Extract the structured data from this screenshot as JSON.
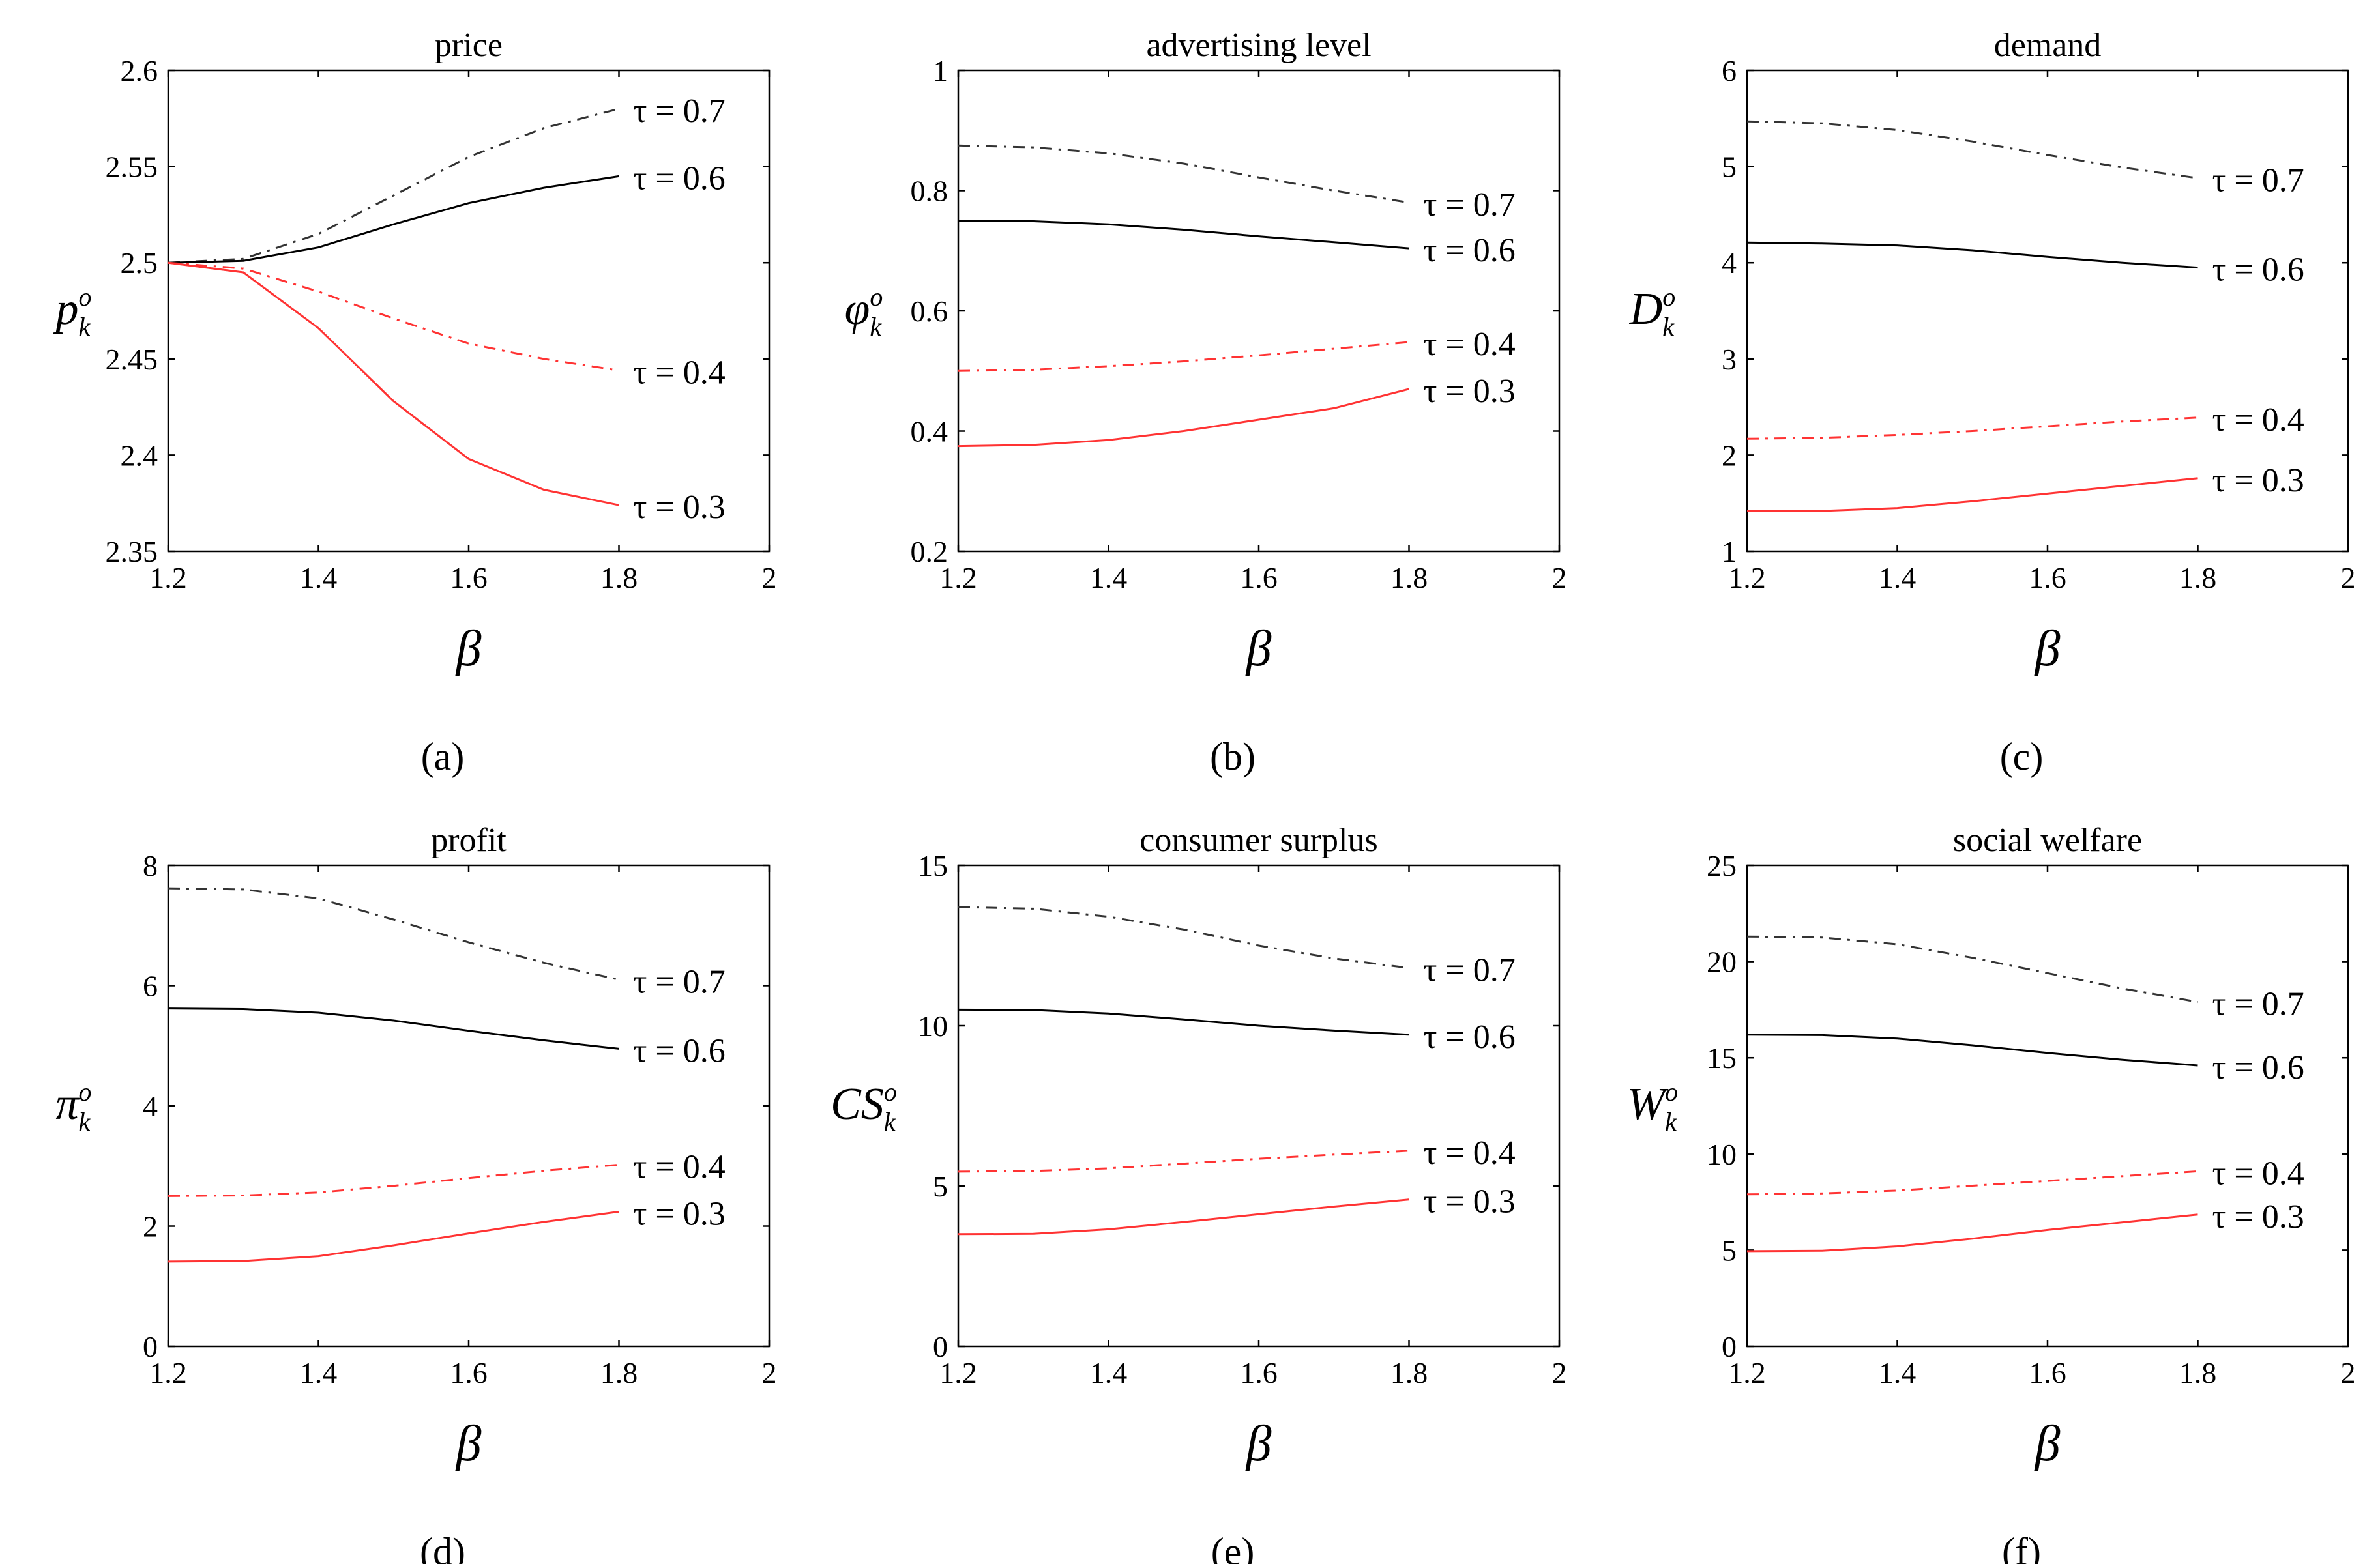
{
  "chart_data": [
    {
      "type": "line",
      "title": "price",
      "caption": "(a)",
      "xlabel": "β",
      "ylabel": {
        "base": "p",
        "sub": "k",
        "sup": "o"
      },
      "x": [
        1.2,
        1.3,
        1.4,
        1.5,
        1.6,
        1.7,
        1.8
      ],
      "xlim": [
        1.2,
        2
      ],
      "xticks": [
        "1.2",
        "1.4",
        "1.6",
        "1.8",
        "2"
      ],
      "ylim": [
        2.35,
        2.6
      ],
      "yticks": [
        "2.35",
        "2.4",
        "2.45",
        "2.5",
        "2.55",
        "2.6"
      ],
      "series": [
        {
          "name": "τ = 0.7",
          "color": "#333333",
          "dash": "dashdot",
          "values": [
            2.5,
            2.502,
            2.515,
            2.535,
            2.555,
            2.57,
            2.58
          ]
        },
        {
          "name": "τ = 0.6",
          "color": "#000000",
          "dash": "solid",
          "values": [
            2.5,
            2.501,
            2.508,
            2.52,
            2.531,
            2.539,
            2.545
          ]
        },
        {
          "name": "τ = 0.4",
          "color": "#ff3333",
          "dash": "dashdot",
          "values": [
            2.5,
            2.497,
            2.485,
            2.471,
            2.458,
            2.45,
            2.444
          ]
        },
        {
          "name": "τ = 0.3",
          "color": "#ff3333",
          "dash": "solid",
          "values": [
            2.5,
            2.495,
            2.466,
            2.428,
            2.398,
            2.382,
            2.374
          ]
        }
      ]
    },
    {
      "type": "line",
      "title": "advertising level",
      "caption": "(b)",
      "xlabel": "β",
      "ylabel": {
        "base": "φ",
        "sub": "k",
        "sup": "o"
      },
      "x": [
        1.2,
        1.3,
        1.4,
        1.5,
        1.6,
        1.7,
        1.8
      ],
      "xlim": [
        1.2,
        2
      ],
      "xticks": [
        "1.2",
        "1.4",
        "1.6",
        "1.8",
        "2"
      ],
      "ylim": [
        0.2,
        1
      ],
      "yticks": [
        "0.2",
        "0.4",
        "0.6",
        "0.8",
        "1"
      ],
      "series": [
        {
          "name": "τ = 0.7",
          "color": "#333333",
          "dash": "dashdot",
          "values": [
            0.875,
            0.872,
            0.862,
            0.845,
            0.822,
            0.8,
            0.78
          ]
        },
        {
          "name": "τ = 0.6",
          "color": "#000000",
          "dash": "solid",
          "values": [
            0.75,
            0.749,
            0.744,
            0.735,
            0.724,
            0.714,
            0.704
          ]
        },
        {
          "name": "τ = 0.4",
          "color": "#ff3333",
          "dash": "dashdot",
          "values": [
            0.5,
            0.502,
            0.508,
            0.516,
            0.526,
            0.537,
            0.548
          ]
        },
        {
          "name": "τ = 0.3",
          "color": "#ff3333",
          "dash": "solid",
          "values": [
            0.375,
            0.377,
            0.385,
            0.4,
            0.419,
            0.438,
            0.47
          ]
        }
      ]
    },
    {
      "type": "line",
      "title": "demand",
      "caption": "(c)",
      "xlabel": "β",
      "ylabel": {
        "base": "D",
        "sub": "k",
        "sup": "o"
      },
      "x": [
        1.2,
        1.3,
        1.4,
        1.5,
        1.6,
        1.7,
        1.8
      ],
      "xlim": [
        1.2,
        2
      ],
      "xticks": [
        "1.2",
        "1.4",
        "1.6",
        "1.8",
        "2"
      ],
      "ylim": [
        1,
        6
      ],
      "yticks": [
        "1",
        "2",
        "3",
        "4",
        "5",
        "6"
      ],
      "series": [
        {
          "name": "τ = 0.7",
          "color": "#333333",
          "dash": "dashdot",
          "values": [
            5.47,
            5.45,
            5.38,
            5.26,
            5.12,
            4.99,
            4.88
          ]
        },
        {
          "name": "τ = 0.6",
          "color": "#000000",
          "dash": "solid",
          "values": [
            4.21,
            4.2,
            4.18,
            4.13,
            4.06,
            4.0,
            3.95
          ]
        },
        {
          "name": "τ = 0.4",
          "color": "#ff3333",
          "dash": "dashdot",
          "values": [
            2.17,
            2.18,
            2.21,
            2.25,
            2.3,
            2.35,
            2.39
          ]
        },
        {
          "name": "τ = 0.3",
          "color": "#ff3333",
          "dash": "solid",
          "values": [
            1.42,
            1.42,
            1.45,
            1.52,
            1.6,
            1.68,
            1.76
          ]
        }
      ]
    },
    {
      "type": "line",
      "title": "profit",
      "caption": "(d)",
      "xlabel": "β",
      "ylabel": {
        "base": "π",
        "sub": "k",
        "sup": "o"
      },
      "x": [
        1.2,
        1.3,
        1.4,
        1.5,
        1.6,
        1.7,
        1.8
      ],
      "xlim": [
        1.2,
        2
      ],
      "xticks": [
        "1.2",
        "1.4",
        "1.6",
        "1.8",
        "2"
      ],
      "ylim": [
        0,
        8
      ],
      "yticks": [
        "0",
        "2",
        "4",
        "6",
        "8"
      ],
      "series": [
        {
          "name": "τ = 0.7",
          "color": "#333333",
          "dash": "dashdot",
          "values": [
            7.62,
            7.6,
            7.45,
            7.1,
            6.72,
            6.38,
            6.1
          ]
        },
        {
          "name": "τ = 0.6",
          "color": "#000000",
          "dash": "solid",
          "values": [
            5.62,
            5.61,
            5.55,
            5.42,
            5.25,
            5.09,
            4.95
          ]
        },
        {
          "name": "τ = 0.4",
          "color": "#ff3333",
          "dash": "dashdot",
          "values": [
            2.5,
            2.51,
            2.56,
            2.67,
            2.8,
            2.92,
            3.02
          ]
        },
        {
          "name": "τ = 0.3",
          "color": "#ff3333",
          "dash": "solid",
          "values": [
            1.41,
            1.42,
            1.5,
            1.68,
            1.88,
            2.07,
            2.24
          ]
        }
      ]
    },
    {
      "type": "line",
      "title": "consumer surplus",
      "caption": "(e)",
      "xlabel": "β",
      "ylabel": {
        "base": "CS",
        "sub": "k",
        "sup": "o"
      },
      "x": [
        1.2,
        1.3,
        1.4,
        1.5,
        1.6,
        1.7,
        1.8
      ],
      "xlim": [
        1.2,
        2
      ],
      "xticks": [
        "1.2",
        "1.4",
        "1.6",
        "1.8",
        "2"
      ],
      "ylim": [
        0,
        15
      ],
      "yticks": [
        "0",
        "5",
        "10",
        "15"
      ],
      "series": [
        {
          "name": "τ = 0.7",
          "color": "#333333",
          "dash": "dashdot",
          "values": [
            13.7,
            13.65,
            13.4,
            13.0,
            12.5,
            12.1,
            11.8
          ]
        },
        {
          "name": "τ = 0.6",
          "color": "#000000",
          "dash": "solid",
          "values": [
            10.5,
            10.49,
            10.38,
            10.2,
            10.0,
            9.85,
            9.72
          ]
        },
        {
          "name": "τ = 0.4",
          "color": "#ff3333",
          "dash": "dashdot",
          "values": [
            5.45,
            5.47,
            5.55,
            5.7,
            5.85,
            5.98,
            6.1
          ]
        },
        {
          "name": "τ = 0.3",
          "color": "#ff3333",
          "dash": "solid",
          "values": [
            3.5,
            3.51,
            3.65,
            3.88,
            4.12,
            4.36,
            4.58
          ]
        }
      ]
    },
    {
      "type": "line",
      "title": "social welfare",
      "caption": "(f)",
      "xlabel": "β",
      "ylabel": {
        "base": "W",
        "sub": "k",
        "sup": "o"
      },
      "x": [
        1.2,
        1.3,
        1.4,
        1.5,
        1.6,
        1.7,
        1.8
      ],
      "xlim": [
        1.2,
        2
      ],
      "xticks": [
        "1.2",
        "1.4",
        "1.6",
        "1.8",
        "2"
      ],
      "ylim": [
        0,
        25
      ],
      "yticks": [
        "0",
        "5",
        "10",
        "15",
        "20",
        "25"
      ],
      "series": [
        {
          "name": "τ = 0.7",
          "color": "#333333",
          "dash": "dashdot",
          "values": [
            21.3,
            21.25,
            20.9,
            20.2,
            19.4,
            18.6,
            17.9
          ]
        },
        {
          "name": "τ = 0.6",
          "color": "#000000",
          "dash": "solid",
          "values": [
            16.2,
            16.18,
            16.0,
            15.65,
            15.25,
            14.9,
            14.6
          ]
        },
        {
          "name": "τ = 0.4",
          "color": "#ff3333",
          "dash": "dashdot",
          "values": [
            7.9,
            7.95,
            8.1,
            8.35,
            8.6,
            8.85,
            9.1
          ]
        },
        {
          "name": "τ = 0.3",
          "color": "#ff3333",
          "dash": "solid",
          "values": [
            4.95,
            4.97,
            5.2,
            5.6,
            6.05,
            6.45,
            6.85
          ]
        }
      ]
    }
  ]
}
